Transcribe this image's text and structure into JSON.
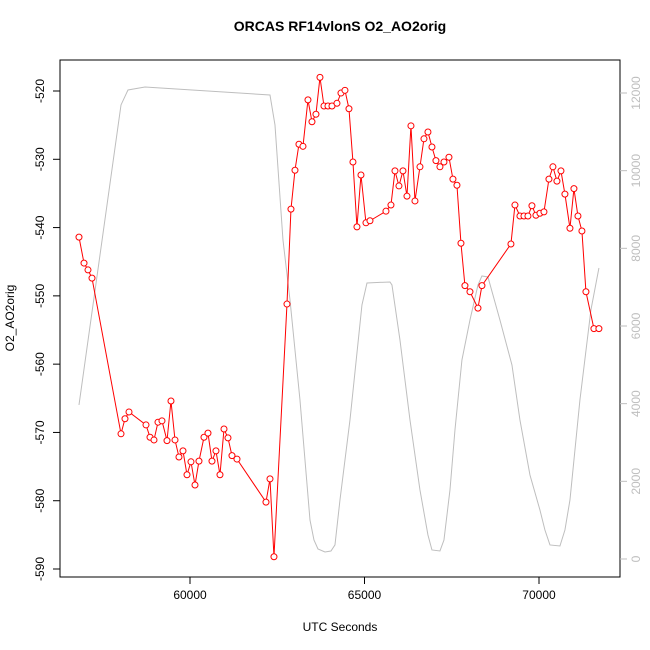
{
  "chart_data": {
    "type": "line",
    "title": "ORCAS RF14vlonS O2_AO2orig",
    "xlabel": "UTC Seconds",
    "ylabel": "O2_AO2orig",
    "xlim": [
      56275,
      72321
    ],
    "ylim": [
      -591.17,
      -515.46
    ],
    "y2lim": [
      -464,
      12850
    ],
    "xticks": [
      60000,
      65000,
      70000
    ],
    "yticks": [
      -590,
      -580,
      -570,
      -560,
      -550,
      -540,
      -530,
      -520
    ],
    "y2ticks": [
      0,
      2000,
      4000,
      6000,
      8000,
      10000,
      12000
    ],
    "y2_color": "#bebebe",
    "series": [
      {
        "color": "#ff0000",
        "marker": "circle",
        "x": [
          56819,
          56963,
          57077,
          57192,
          58023,
          58137,
          58252,
          58739,
          58854,
          58968,
          59083,
          59197,
          59341,
          59455,
          59570,
          59684,
          59799,
          59914,
          60028,
          60143,
          60257,
          60401,
          60515,
          60630,
          60744,
          60859,
          60974,
          61088,
          61203,
          61346,
          62177,
          62292,
          62406,
          62779,
          62893,
          63008,
          63122,
          63237,
          63380,
          63495,
          63609,
          63724,
          63839,
          63953,
          64068,
          64211,
          64326,
          64440,
          64555,
          64669,
          64784,
          64899,
          65042,
          65157,
          65615,
          65758,
          65873,
          65987,
          66102,
          66217,
          66331,
          66446,
          66589,
          66704,
          66818,
          66933,
          67047,
          67162,
          67277,
          67420,
          67534,
          67649,
          67764,
          67878,
          68022,
          68251,
          68365,
          69196,
          69311,
          69454,
          69569,
          69683,
          69798,
          69912,
          70027,
          70142,
          70285,
          70399,
          70514,
          70629,
          70743,
          70887,
          71001,
          71116,
          71230,
          71345,
          71574,
          71717
        ],
        "values": [
          -541.4,
          -545.2,
          -546.2,
          -547.4,
          -570.2,
          -568.0,
          -567.0,
          -568.9,
          -570.7,
          -571.1,
          -568.5,
          -568.3,
          -571.2,
          -565.4,
          -571.1,
          -573.6,
          -572.7,
          -576.2,
          -574.3,
          -577.7,
          -574.2,
          -570.7,
          -570.1,
          -574.2,
          -572.7,
          -576.2,
          -569.5,
          -570.8,
          -573.4,
          -573.9,
          -580.2,
          -576.8,
          -588.2,
          -551.2,
          -537.3,
          -531.6,
          -527.8,
          -528.1,
          -521.3,
          -524.5,
          -523.4,
          -518.0,
          -522.2,
          -522.2,
          -522.2,
          -521.8,
          -520.3,
          -519.9,
          -522.6,
          -530.4,
          -539.9,
          -532.3,
          -539.3,
          -539.0,
          -537.6,
          -536.7,
          -531.7,
          -533.9,
          -531.7,
          -535.4,
          -525.1,
          -536.1,
          -531.1,
          -527.0,
          -526.0,
          -528.2,
          -530.2,
          -531.1,
          -530.4,
          -529.7,
          -532.9,
          -533.8,
          -542.3,
          -548.5,
          -549.4,
          -551.8,
          -548.5,
          -542.4,
          -536.7,
          -538.3,
          -538.3,
          -538.3,
          -536.8,
          -538.2,
          -537.9,
          -537.7,
          -532.9,
          -531.1,
          -533.2,
          -531.7,
          -535.1,
          -540.1,
          -534.3,
          -538.3,
          -540.5,
          -549.4,
          -554.8,
          -554.8
        ]
      },
      {
        "color": "#bebebe",
        "axis": "y2",
        "x": [
          56819,
          58023,
          58223,
          58710,
          62292,
          62435,
          62664,
          62865,
          63151,
          63438,
          63552,
          63667,
          63867,
          64039,
          64154,
          64297,
          64584,
          64927,
          65071,
          65730,
          65787,
          66016,
          66303,
          66589,
          66818,
          66933,
          67162,
          67277,
          67449,
          67592,
          67792,
          68022,
          68251,
          68365,
          68537,
          68881,
          69225,
          69454,
          69741,
          70027,
          70170,
          70314,
          70600,
          70743,
          70887,
          71173,
          71488,
          71717
        ],
        "values": [
          3966,
          11692,
          12078,
          12155,
          11949,
          11177,
          8215,
          6670,
          4095,
          1004,
          489,
          258,
          180,
          206,
          361,
          1519,
          3580,
          6541,
          7108,
          7134,
          7056,
          5640,
          3580,
          1777,
          618,
          232,
          206,
          489,
          1777,
          3322,
          5125,
          6155,
          7056,
          7288,
          7262,
          6155,
          4996,
          3580,
          2163,
          1262,
          747,
          361,
          335,
          747,
          1519,
          4095,
          6413,
          7494
        ]
      }
    ]
  }
}
